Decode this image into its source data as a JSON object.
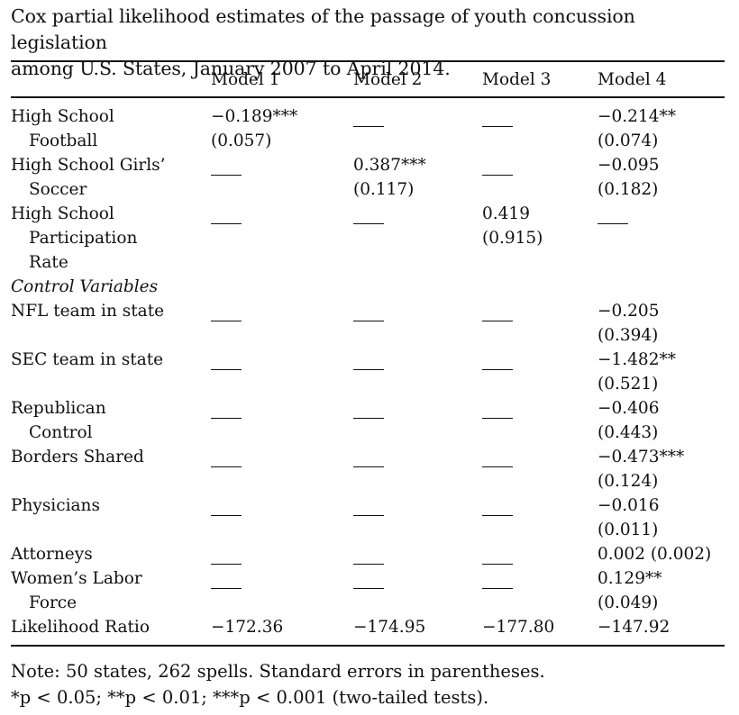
{
  "caption": {
    "line1": "Cox partial likelihood estimates of the passage of youth concussion legislation",
    "line2": "among U.S. States, January 2007 to April 2014."
  },
  "columns": [
    "Model 1",
    "Model 2",
    "Model 3",
    "Model 4"
  ],
  "rows": [
    {
      "label": [
        "High School",
        "Football"
      ],
      "cells": [
        [
          "−0.189***",
          "(0.057)"
        ],
        "dash",
        "dash",
        [
          "−0.214**",
          "(0.074)"
        ]
      ]
    },
    {
      "label": [
        "High School Girls’",
        "Soccer"
      ],
      "cells": [
        "dash",
        [
          "0.387***",
          "(0.117)"
        ],
        "dash",
        [
          "−0.095",
          "(0.182)"
        ]
      ]
    },
    {
      "label": [
        "High School",
        "Participation",
        "Rate"
      ],
      "cells": [
        "dash",
        "dash",
        [
          "0.419",
          "(0.915)"
        ],
        "dash"
      ]
    },
    {
      "label": [
        "Control Variables"
      ],
      "italic": true,
      "cells": [
        "",
        "",
        "",
        ""
      ]
    },
    {
      "label": [
        "NFL team in state"
      ],
      "cells": [
        "dash",
        "dash",
        "dash",
        [
          "−0.205",
          "(0.394)"
        ]
      ]
    },
    {
      "label": [
        "SEC team in state"
      ],
      "cells": [
        "dash",
        "dash",
        "dash",
        [
          "−1.482**",
          "(0.521)"
        ]
      ]
    },
    {
      "label": [
        "Republican",
        "Control"
      ],
      "cells": [
        "dash",
        "dash",
        "dash",
        [
          "−0.406",
          "(0.443)"
        ]
      ]
    },
    {
      "label": [
        "Borders Shared"
      ],
      "cells": [
        "dash",
        "dash",
        "dash",
        [
          "−0.473***",
          "(0.124)"
        ]
      ]
    },
    {
      "label": [
        "Physicians"
      ],
      "cells": [
        "dash",
        "dash",
        "dash",
        [
          "−0.016",
          "(0.011)"
        ]
      ]
    },
    {
      "label": [
        "Attorneys"
      ],
      "cells": [
        "dash",
        "dash",
        "dash",
        [
          "0.002 (0.002)"
        ]
      ]
    },
    {
      "label": [
        "Women’s Labor",
        "Force"
      ],
      "cells": [
        "dash",
        "dash",
        "dash",
        [
          "0.129**",
          "(0.049)"
        ]
      ]
    },
    {
      "label": [
        "Likelihood Ratio"
      ],
      "cells": [
        [
          "−172.36"
        ],
        [
          "−174.95"
        ],
        [
          "−177.80"
        ],
        [
          "−147.92"
        ]
      ]
    }
  ],
  "note": {
    "line1": "Note: 50 states, 262 spells. Standard errors in parentheses.",
    "line2": "*p < 0.05; **p < 0.01; ***p < 0.001 (two-tailed tests)."
  }
}
